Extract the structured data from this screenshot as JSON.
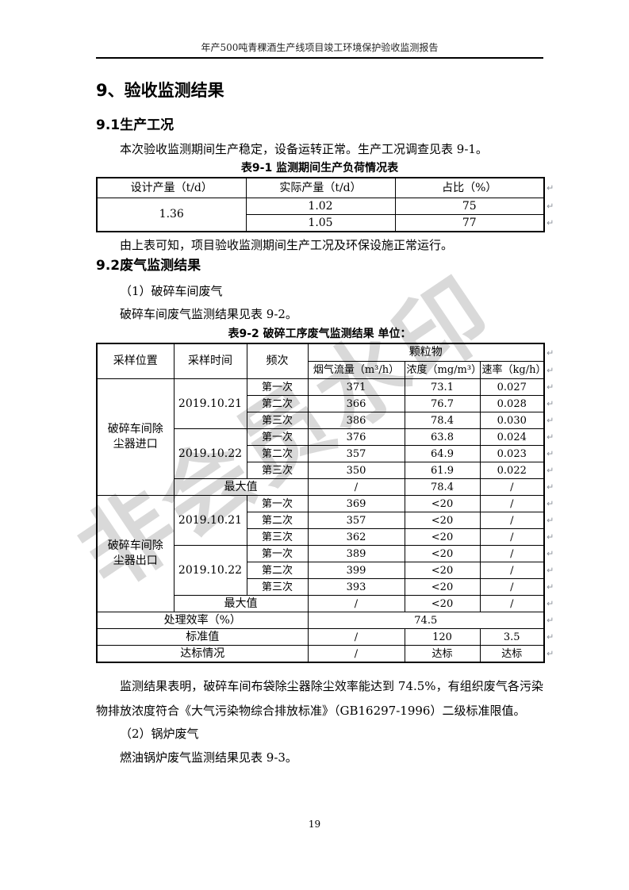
{
  "page": {
    "header_title": "年产500吨青稞酒生产线项目竣工环境保护验收监测报告",
    "page_number": "19",
    "watermark": "非会员水印",
    "return_mark": "↵"
  },
  "sections": {
    "h1": "9、验收监测结果",
    "h2_1": "9.1生产工况",
    "p1": "本次验收监测期间生产稳定，设备运转正常。生产工况调查见表 9-1。",
    "p2": "由上表可知，项目验收监测期间生产工况及环保设施正常运行。",
    "h2_2": "9.2废气监测结果",
    "p3": "（1）破碎车间废气",
    "p4": "破碎车间废气监测结果见表 9-2。",
    "p5": "监测结果表明，破碎车间布袋除尘器除尘效率能达到 74.5%，有组织废气各污染物排放浓度符合《大气污染物综合排放标准》（GB16297-1996）二级标准限值。",
    "p6": "（2）锅炉废气",
    "p7": "燃油锅炉废气监测结果见表 9-3。"
  },
  "table1": {
    "caption": "表9-1  监测期间生产负荷情况表",
    "headers": [
      "设计产量（t/d）",
      "实际产量（t/d）",
      "占比（%）"
    ],
    "design_output": "1.36",
    "rows": [
      [
        "1.02",
        "75"
      ],
      [
        "1.05",
        "77"
      ]
    ]
  },
  "table2": {
    "caption": "表9-2  破碎工序废气监测结果  单位：",
    "headers": {
      "col1": "采样位置",
      "col2": "采样时间",
      "col3": "频次",
      "group": "颗粒物",
      "sub": [
        "烟气流量（m³/h）",
        "浓度（mg/m³）",
        "速率（kg/h）"
      ]
    },
    "sections": [
      {
        "location": "破碎车间除尘器进口",
        "dates": [
          {
            "date": "2019.10.21",
            "runs": [
              [
                "第一次",
                "371",
                "73.1",
                "0.027"
              ],
              [
                "第二次",
                "366",
                "76.7",
                "0.028"
              ],
              [
                "第三次",
                "386",
                "78.4",
                "0.030"
              ]
            ]
          },
          {
            "date": "2019.10.22",
            "runs": [
              [
                "第一次",
                "376",
                "63.8",
                "0.024"
              ],
              [
                "第二次",
                "357",
                "64.9",
                "0.023"
              ],
              [
                "第三次",
                "350",
                "61.9",
                "0.022"
              ]
            ]
          }
        ],
        "max_label": "最大值",
        "max": [
          "/",
          "78.4",
          "/"
        ]
      },
      {
        "location": "破碎车间除尘器出口",
        "dates": [
          {
            "date": "2019.10.21",
            "runs": [
              [
                "第一次",
                "369",
                "<20",
                "/"
              ],
              [
                "第二次",
                "357",
                "<20",
                "/"
              ],
              [
                "第三次",
                "362",
                "<20",
                "/"
              ]
            ]
          },
          {
            "date": "2019.10.22",
            "runs": [
              [
                "第一次",
                "389",
                "<20",
                "/"
              ],
              [
                "第二次",
                "399",
                "<20",
                "/"
              ],
              [
                "第三次",
                "393",
                "<20",
                "/"
              ]
            ]
          }
        ],
        "max_label": "最大值",
        "max": [
          "/",
          "<20",
          "/"
        ]
      }
    ],
    "footer_rows": [
      {
        "label": "处理效率（%）",
        "values": [
          "74.5"
        ],
        "merged": true
      },
      {
        "label": "标准值",
        "values": [
          "/",
          "120",
          "3.5"
        ],
        "merged": false
      },
      {
        "label": "达标情况",
        "values": [
          "/",
          "达标",
          "达标"
        ],
        "merged": false
      }
    ]
  }
}
